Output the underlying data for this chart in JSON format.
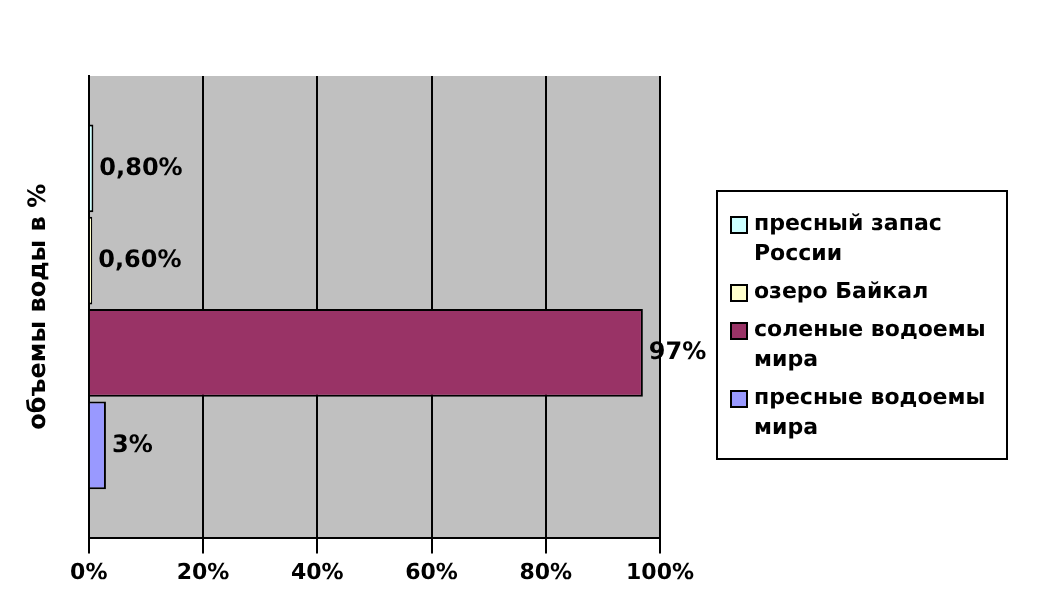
{
  "chart_data": {
    "type": "bar",
    "orientation": "horizontal",
    "ylabel": "объемы воды в %",
    "categories": [
      null
    ],
    "series": [
      {
        "name": "пресный запас России",
        "color": "#ccffff",
        "values": [
          0.8
        ],
        "value_labels": [
          "0,80%"
        ]
      },
      {
        "name": "озеро Байкал",
        "color": "#ffffcc",
        "values": [
          0.6
        ],
        "value_labels": [
          "0,60%"
        ]
      },
      {
        "name": "соленые водоемы мира",
        "color": "#993366",
        "values": [
          97
        ],
        "value_labels": [
          "97%"
        ]
      },
      {
        "name": "пресные водоемы мира",
        "color": "#9999ff",
        "values": [
          3
        ],
        "value_labels": [
          "3%"
        ]
      }
    ],
    "xlim": [
      0,
      100
    ],
    "xticks": [
      {
        "value": 0,
        "label": "0%"
      },
      {
        "value": 20,
        "label": "20%"
      },
      {
        "value": 40,
        "label": "40%"
      },
      {
        "value": 60,
        "label": "60%"
      },
      {
        "value": 80,
        "label": "80%"
      },
      {
        "value": 100,
        "label": "100%"
      }
    ],
    "grid": "x",
    "legend": "right"
  }
}
